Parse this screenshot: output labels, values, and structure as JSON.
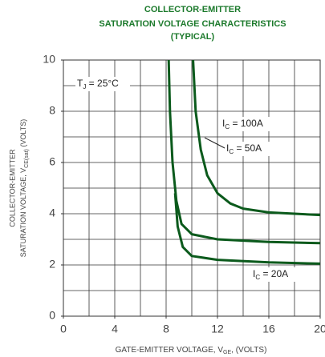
{
  "chart_data": {
    "type": "line",
    "title": [
      "COLLECTOR-EMITTER",
      "SATURATION VOLTAGE CHARACTERISTICS",
      "(TYPICAL)"
    ],
    "x_label": {
      "main": "GATE-EMITTER VOLTAGE, V",
      "sub": "GE",
      "rest": ", (VOLTS)"
    },
    "y_label": {
      "line1": "COLLECTOR-EMITTER",
      "main": "SATURATION VOLTAGE, V",
      "sub": "CE(sat)",
      "rest": " (VOLTS)"
    },
    "annotation": {
      "main": "T",
      "sub": "J",
      "rest": " = 25°C"
    },
    "xlim": [
      0,
      20
    ],
    "ylim": [
      0,
      10
    ],
    "xticks": [
      0,
      4,
      8,
      12,
      16,
      20
    ],
    "yticks": [
      0,
      2,
      4,
      6,
      8,
      10
    ],
    "xgrid": [
      2,
      4,
      6,
      8,
      10,
      12,
      14,
      16,
      18
    ],
    "ygrid": [
      1,
      2,
      3,
      4,
      5,
      6,
      7,
      8,
      9
    ],
    "grid": true,
    "color": "#0b5a1c",
    "series": [
      {
        "name": {
          "main": "I",
          "sub": "C",
          "rest": " = 100A"
        },
        "x": [
          10.1,
          10.3,
          10.7,
          11.2,
          12,
          13,
          14,
          16,
          20
        ],
        "values": [
          10,
          8,
          6.5,
          5.5,
          4.8,
          4.4,
          4.2,
          4.05,
          3.95
        ]
      },
      {
        "name": {
          "main": "I",
          "sub": "C",
          "rest": " = 50A"
        },
        "x": [
          8.2,
          8.3,
          8.5,
          8.8,
          9.2,
          10,
          12,
          16,
          20
        ],
        "values": [
          10,
          8,
          6,
          4.5,
          3.6,
          3.2,
          3.0,
          2.9,
          2.85
        ]
      },
      {
        "name": {
          "main": "I",
          "sub": "C",
          "rest": " = 20A"
        },
        "x": [
          8.7,
          8.9,
          9.3,
          10,
          12,
          16,
          20
        ],
        "values": [
          4.8,
          3.5,
          2.7,
          2.35,
          2.2,
          2.1,
          2.05
        ]
      }
    ]
  }
}
